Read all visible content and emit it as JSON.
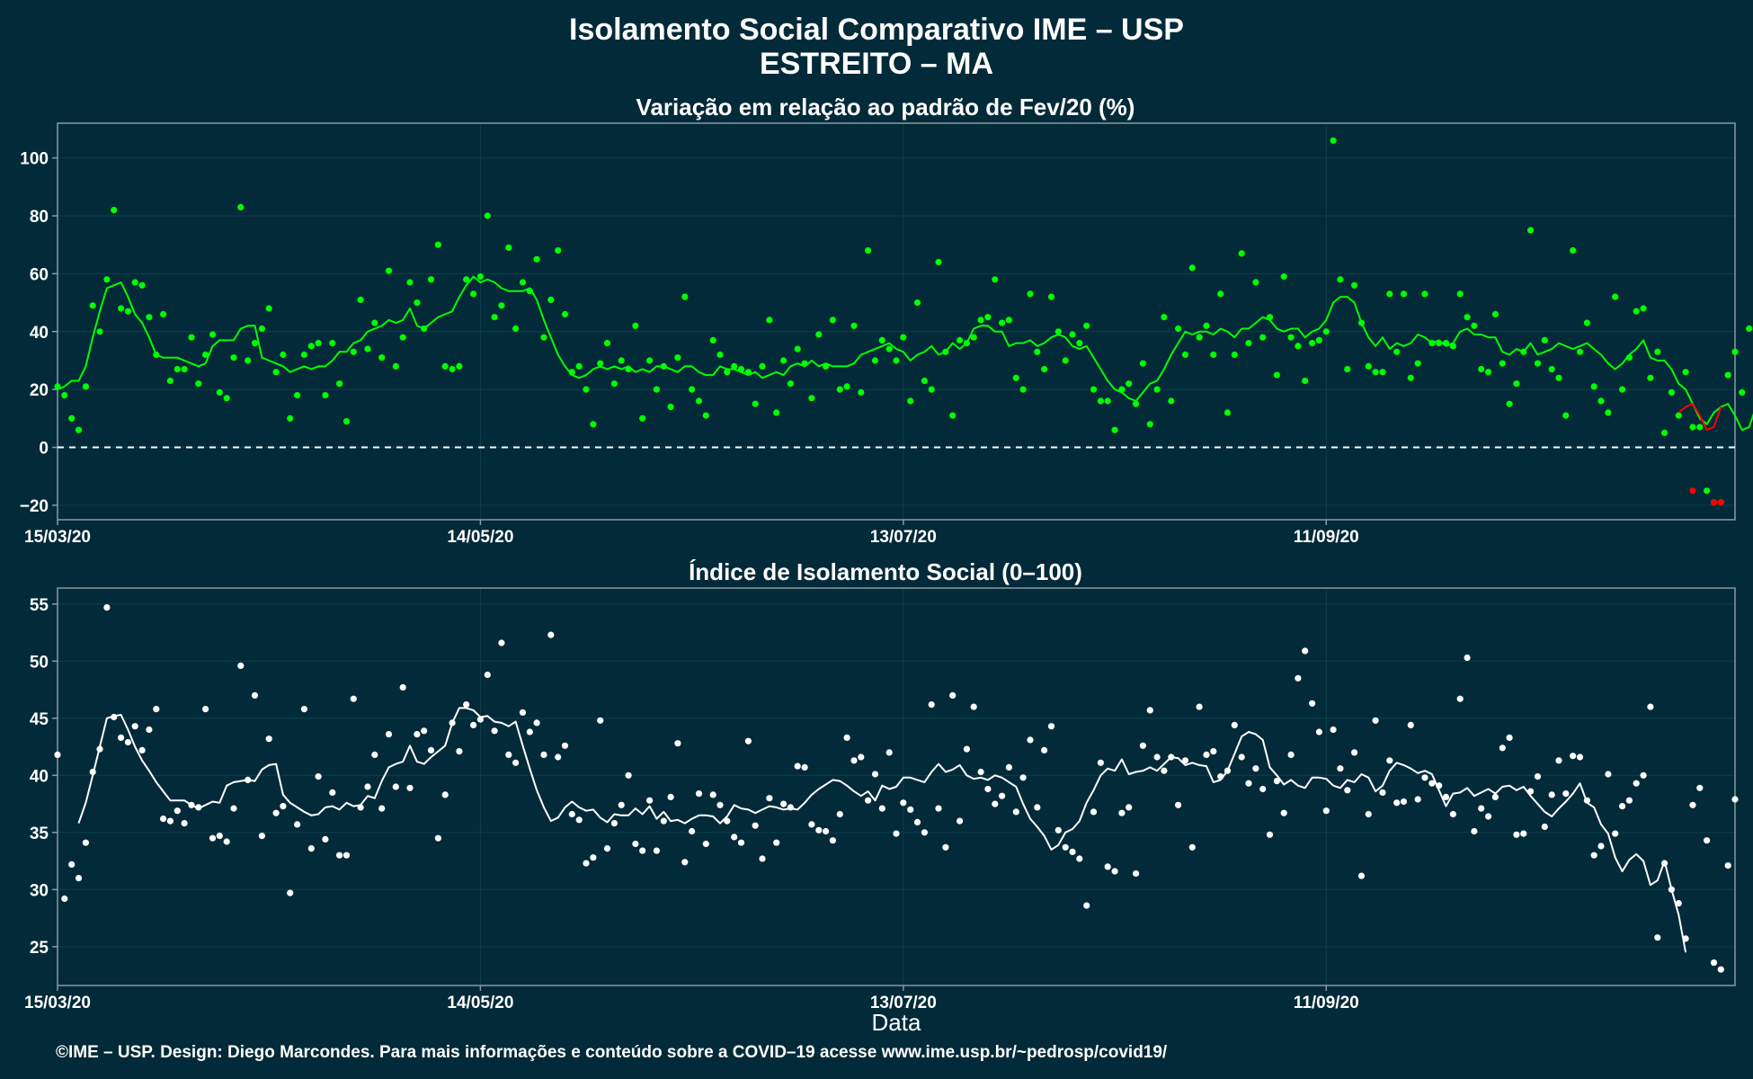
{
  "title_line1": "Isolamento Social Comparativo IME – USP",
  "title_line2": "ESTREITO – MA",
  "footer": "©IME – USP. Design: Diego Marcondes. Para mais informações e conteúdo sobre a COVID–19 acesse www.ime.usp.br/~pedrosp/covid19/",
  "colors": {
    "background": "#022a38",
    "green": "#00ff00",
    "red": "#ff0000",
    "white": "#ffffff",
    "frame": "#8a9aa0",
    "grid": "#0f3f4c"
  },
  "chart_data": [
    {
      "type": "scatter",
      "title": "Variação em relação ao padrão de Fev/20 (%)",
      "xlabel": "",
      "ylabel": "",
      "x_start": "15/03/20",
      "x_ticks": [
        {
          "day": 0,
          "label": "15/03/20"
        },
        {
          "day": 60,
          "label": "14/05/20"
        },
        {
          "day": 120,
          "label": "13/07/20"
        },
        {
          "day": 180,
          "label": "11/09/20"
        }
      ],
      "y_ticks": [
        -20,
        0,
        20,
        40,
        60,
        80,
        100
      ],
      "xlim": [
        0,
        238
      ],
      "ylim": [
        -25,
        112
      ],
      "reference_line": 0,
      "series": [
        {
          "kind": "points",
          "color": "green",
          "values": [
            21,
            18,
            10,
            6,
            21,
            49,
            40,
            58,
            82,
            48,
            47,
            57,
            56,
            45,
            32,
            46,
            23,
            27,
            27,
            38,
            22,
            32,
            39,
            19,
            17,
            31,
            83,
            30,
            36,
            41,
            48,
            26,
            32,
            10,
            18,
            32,
            35,
            36,
            18,
            36,
            22,
            9,
            33,
            51,
            34,
            43,
            31,
            61,
            28,
            38,
            57,
            50,
            41,
            58,
            70,
            28,
            27,
            28,
            58,
            53,
            59,
            80,
            45,
            49,
            69,
            41,
            57,
            54,
            65,
            38,
            51,
            68,
            46,
            26,
            28,
            20,
            8,
            29,
            36,
            22,
            30,
            27,
            42,
            10,
            30,
            20,
            28,
            14,
            31,
            52,
            20,
            16,
            11,
            37,
            32,
            26,
            28,
            27,
            26,
            15,
            28,
            44,
            12,
            30,
            22,
            34,
            29,
            17,
            39,
            28,
            44,
            20,
            21,
            42,
            19,
            68,
            30,
            37,
            34,
            30,
            38,
            16,
            50,
            23,
            20,
            64,
            33,
            11,
            37,
            36,
            38,
            44,
            45,
            58,
            43,
            44,
            24,
            20,
            53,
            33,
            27,
            52,
            40,
            30,
            39,
            36,
            42,
            20,
            16,
            16,
            6,
            20,
            22,
            15,
            29,
            8,
            20,
            45,
            16,
            41,
            32,
            62,
            38,
            42,
            32,
            53,
            12,
            32,
            67,
            36,
            57,
            38,
            45,
            25,
            59,
            38,
            35,
            23,
            36,
            37,
            40,
            106,
            58,
            27,
            56,
            43,
            28,
            26,
            26,
            53,
            33,
            53,
            24,
            29,
            53,
            36,
            36,
            36,
            35,
            53,
            45,
            42,
            27,
            26,
            46,
            29,
            15,
            22,
            33,
            75,
            29,
            37,
            27,
            24,
            11,
            68,
            33,
            43,
            21,
            16,
            12,
            52,
            20,
            31,
            47,
            48,
            24,
            33,
            5,
            19,
            11,
            26,
            7,
            7,
            -15,
            -19,
            -19,
            25,
            33,
            19,
            41
          ]
        },
        {
          "kind": "line",
          "color": "green",
          "values": [
            20,
            21,
            23,
            23,
            28,
            38,
            47,
            55,
            56,
            57,
            52,
            46,
            43,
            38,
            32,
            31,
            31,
            31,
            30,
            29,
            28,
            29,
            35,
            37,
            37,
            37,
            41,
            42,
            42,
            31,
            30,
            29,
            28,
            26,
            27,
            28,
            27,
            28,
            28,
            30,
            33,
            33,
            36,
            37,
            40,
            41,
            42,
            44,
            43,
            44,
            48,
            42,
            41,
            43,
            45,
            46,
            47,
            52,
            56,
            59,
            57,
            58,
            57,
            55,
            54,
            54,
            54,
            55,
            51,
            44,
            38,
            32,
            28,
            25,
            24,
            25,
            27,
            28,
            27,
            28,
            27,
            28,
            26,
            27,
            26,
            28,
            28,
            27,
            26,
            28,
            28,
            26,
            25,
            25,
            28,
            27,
            27,
            26,
            25,
            26,
            24,
            25,
            26,
            25,
            28,
            29,
            28,
            30,
            28,
            29,
            28,
            28,
            28,
            29,
            32,
            33,
            34,
            35,
            36,
            34,
            33,
            30,
            32,
            33,
            35,
            32,
            33,
            36,
            34,
            36,
            41,
            42,
            42,
            40,
            40,
            35,
            36,
            36,
            37,
            35,
            36,
            38,
            39,
            38,
            35,
            34,
            35,
            31,
            27,
            23,
            20,
            19,
            17,
            16,
            19,
            22,
            23,
            27,
            32,
            36,
            40,
            39,
            40,
            40,
            39,
            41,
            40,
            38,
            41,
            41,
            43,
            45,
            44,
            41,
            40,
            41,
            41,
            38,
            40,
            41,
            44,
            50,
            52,
            52,
            50,
            43,
            38,
            35,
            38,
            34,
            36,
            35,
            36,
            39,
            38,
            36,
            37,
            35,
            36,
            40,
            41,
            39,
            39,
            38,
            38,
            33,
            32,
            34,
            33,
            36,
            32,
            33,
            34,
            36,
            35,
            34,
            35,
            36,
            34,
            32,
            29,
            27,
            29,
            32,
            34,
            37,
            31,
            30,
            30,
            27,
            22,
            20,
            15,
            10,
            8,
            12,
            14,
            15,
            11,
            6,
            7,
            14
          ]
        },
        {
          "kind": "line",
          "color": "red",
          "start_index": 230,
          "values": [
            12,
            14,
            15,
            11,
            6,
            7,
            14
          ]
        },
        {
          "kind": "points",
          "color": "red",
          "indices": [
            232,
            235,
            236
          ],
          "values": [
            -15,
            -19,
            -19
          ]
        }
      ]
    },
    {
      "type": "scatter",
      "title": "Índice de Isolamento Social (0–100)",
      "xlabel": "Data",
      "ylabel": "",
      "x_start": "15/03/20",
      "x_ticks": [
        {
          "day": 0,
          "label": "15/03/20"
        },
        {
          "day": 60,
          "label": "14/05/20"
        },
        {
          "day": 120,
          "label": "13/07/20"
        },
        {
          "day": 180,
          "label": "11/09/20"
        }
      ],
      "y_ticks": [
        25,
        30,
        35,
        40,
        45,
        50,
        55
      ],
      "xlim": [
        0,
        238
      ],
      "ylim": [
        21.6,
        56.4
      ],
      "series": [
        {
          "kind": "points",
          "color": "white",
          "values": [
            41.8,
            29.2,
            32.2,
            31.0,
            34.1,
            40.3,
            42.3,
            54.7,
            45.1,
            43.3,
            42.9,
            44.3,
            42.2,
            44.0,
            45.8,
            36.2,
            36.0,
            36.9,
            35.8,
            37.4,
            37.2,
            45.8,
            34.5,
            34.7,
            34.2,
            37.1,
            49.6,
            39.6,
            47.0,
            34.7,
            43.2,
            36.7,
            37.3,
            29.7,
            35.7,
            45.8,
            33.6,
            39.9,
            34.4,
            38.5,
            33.0,
            33.0,
            46.7,
            37.2,
            39.0,
            41.8,
            37.1,
            43.6,
            39.0,
            47.7,
            38.9,
            43.6,
            43.9,
            42.2,
            34.5,
            38.3,
            44.6,
            42.1,
            46.2,
            44.4,
            44.9,
            48.8,
            43.9,
            51.6,
            41.8,
            41.1,
            45.5,
            43.8,
            44.6,
            41.8,
            52.3,
            41.6,
            42.6,
            36.6,
            36.1,
            32.3,
            32.8,
            44.8,
            33.6,
            35.8,
            37.4,
            40.0,
            34.0,
            33.4,
            37.8,
            33.4,
            36.0,
            38.1,
            42.8,
            32.4,
            35.1,
            38.4,
            34.0,
            38.3,
            37.4,
            36.0,
            34.6,
            34.1,
            43.0,
            35.6,
            32.7,
            38.0,
            34.1,
            37.5,
            37.2,
            40.8,
            40.7,
            35.7,
            35.2,
            35.1,
            34.3,
            36.6,
            43.3,
            41.3,
            41.6,
            37.8,
            40.1,
            37.1,
            42.0,
            34.9,
            37.6,
            37.0,
            35.9,
            35.0,
            46.2,
            37.1,
            33.7,
            47.0,
            36.0,
            42.3,
            46.0,
            40.3,
            38.8,
            37.5,
            38.2,
            40.7,
            36.8,
            39.8,
            43.1,
            37.2,
            42.2,
            44.3,
            35.2,
            33.7,
            33.3,
            32.7,
            28.6,
            36.8,
            41.1,
            32.0,
            31.6,
            36.7,
            37.2,
            31.4,
            42.6,
            45.7,
            41.6,
            40.4,
            41.6,
            37.4,
            41.3,
            33.7,
            46.0,
            41.8,
            42.1,
            39.9,
            40.4,
            44.4,
            41.6,
            39.3,
            40.6,
            38.8,
            34.8,
            39.5,
            36.7,
            41.8,
            48.5,
            50.9,
            46.3,
            43.8,
            36.9,
            44.0,
            40.6,
            38.7,
            42.0,
            31.2,
            36.6,
            44.8,
            38.5,
            41.3,
            37.6,
            37.7,
            44.4,
            37.9,
            39.8,
            39.3,
            39.1,
            38.1,
            36.6,
            46.7,
            50.3,
            35.1,
            37.1,
            36.4,
            38.1,
            42.4,
            43.3,
            34.8,
            34.9,
            38.6,
            39.9,
            35.5,
            38.3,
            41.3,
            38.4,
            41.7,
            41.6,
            37.8,
            33.0,
            33.8,
            40.1,
            34.9,
            37.3,
            37.8,
            39.3,
            40.0,
            46.0,
            25.8,
            32.3,
            30.0,
            28.8,
            25.7,
            37.4,
            38.9,
            34.3,
            23.6,
            23.0,
            32.1,
            37.9
          ]
        },
        {
          "kind": "line",
          "color": "white",
          "start_index": 3,
          "values": [
            35.8,
            37.6,
            40.0,
            42.5,
            45.0,
            45.2,
            45.3,
            44.0,
            42.5,
            41.3,
            40.4,
            39.4,
            38.6,
            37.8,
            37.8,
            37.8,
            37.4,
            37.1,
            37.4,
            37.7,
            37.6,
            39.1,
            39.4,
            39.5,
            39.6,
            39.5,
            40.5,
            40.9,
            41.0,
            38.3,
            37.6,
            37.2,
            36.8,
            36.5,
            36.6,
            37.2,
            37.3,
            37.0,
            37.6,
            37.3,
            37.4,
            38.2,
            38.0,
            39.5,
            40.7,
            41.0,
            41.2,
            42.6,
            41.2,
            41.0,
            41.6,
            42.1,
            42.6,
            44.6,
            45.9,
            45.9,
            45.7,
            45.1,
            45.2,
            44.7,
            44.6,
            44.3,
            44.7,
            42.6,
            40.6,
            38.7,
            37.2,
            36.0,
            36.3,
            37.2,
            37.7,
            37.2,
            36.9,
            37.0,
            36.3,
            35.9,
            36.6,
            36.5,
            36.5,
            37.1,
            36.6,
            37.3,
            36.2,
            36.8,
            36.0,
            36.1,
            35.8,
            36.2,
            36.5,
            36.5,
            36.4,
            35.8,
            36.4,
            37.4,
            37.1,
            37.0,
            36.7,
            37.0,
            37.3,
            37.2,
            37.0,
            37.1,
            37.0,
            37.6,
            38.3,
            38.8,
            39.2,
            39.6,
            39.5,
            39.1,
            38.6,
            38.2,
            38.6,
            37.8,
            39.1,
            38.8,
            39.0,
            39.8,
            39.8,
            39.6,
            39.4,
            40.3,
            41.0,
            40.3,
            40.5,
            40.9,
            40.0,
            39.7,
            39.8,
            39.6,
            40.0,
            39.8,
            39.4,
            39.0,
            37.5,
            36.2,
            35.5,
            34.7,
            33.5,
            33.9,
            35.0,
            35.3,
            36.0,
            37.6,
            38.7,
            40.0,
            40.6,
            40.4,
            41.4,
            40.1,
            40.3,
            40.4,
            40.7,
            40.4,
            41.0,
            41.6,
            41.5,
            40.9,
            41.1,
            40.9,
            40.8,
            39.4,
            39.6,
            40.4,
            41.9,
            43.4,
            43.8,
            43.6,
            43.1,
            40.7,
            40.0,
            39.2,
            39.6,
            39.1,
            38.9,
            39.8,
            39.8,
            39.7,
            39.1,
            38.9,
            39.6,
            39.4,
            40.1,
            39.8,
            38.6,
            39.1,
            40.4,
            41.1,
            40.9,
            40.6,
            40.2,
            40.4,
            40.1,
            38.7,
            37.3,
            38.4,
            38.5,
            38.9,
            38.2,
            38.5,
            38.8,
            38.4,
            39.0,
            39.1,
            38.7,
            39.0,
            38.2,
            37.5,
            36.8,
            36.4,
            37.1,
            37.7,
            38.4,
            39.3,
            37.6,
            37.2,
            35.7,
            34.9,
            32.8,
            31.6,
            32.6,
            33.1,
            32.5,
            30.4,
            30.8,
            32.5,
            30.0,
            27.8,
            24.5
          ]
        }
      ]
    }
  ]
}
